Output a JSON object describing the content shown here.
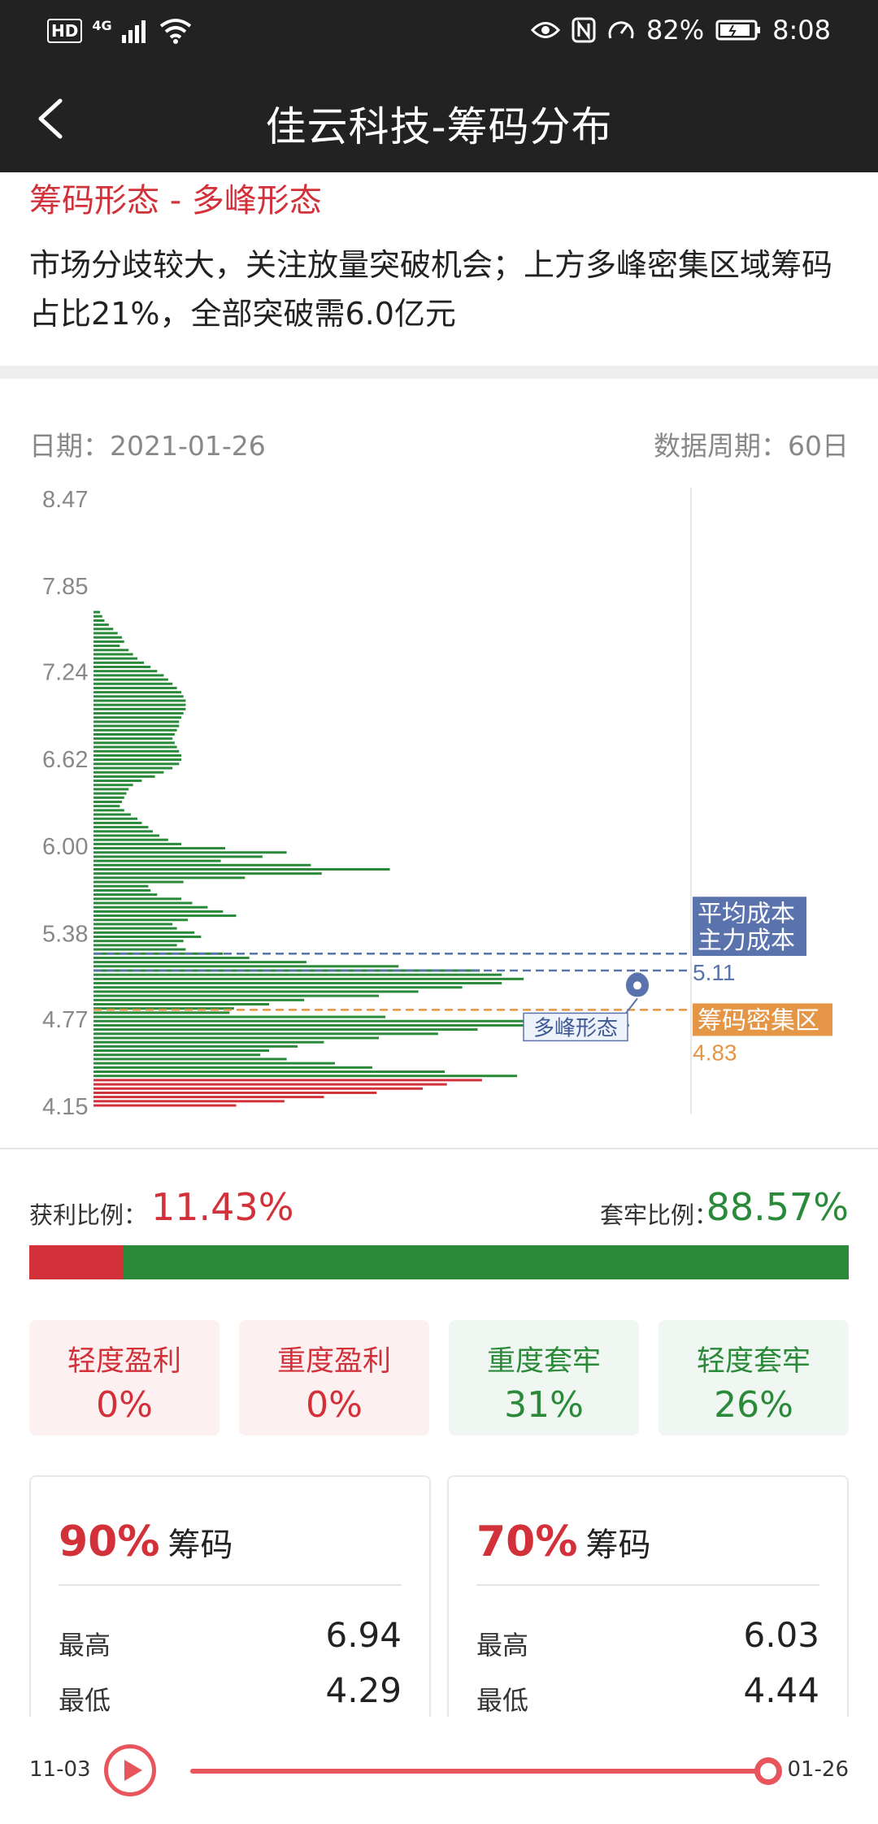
{
  "status_bar": {
    "hd": "HD",
    "network": "4G",
    "battery_pct": "82%",
    "time": "8:08"
  },
  "header": {
    "title": "佳云科技-筹码分布"
  },
  "pattern": {
    "title": "筹码形态 - 多峰形态",
    "description": "市场分歧较大，关注放量突破机会；上方多峰密集区域筹码占比21%，全部突破需6.0亿元"
  },
  "info": {
    "date": "日期：2021-01-26",
    "period": "数据周期：60日"
  },
  "chart_data": {
    "type": "bar",
    "orientation": "horizontal",
    "y_ticks": [
      "8.47",
      "7.85",
      "7.24",
      "6.62",
      "6.00",
      "5.38",
      "4.77",
      "4.15"
    ],
    "ylim": [
      4.15,
      8.47
    ],
    "price_step": 0.0311,
    "green_bars": [
      [
        7.66,
        3
      ],
      [
        7.63,
        4
      ],
      [
        7.6,
        5
      ],
      [
        7.57,
        7
      ],
      [
        7.54,
        9
      ],
      [
        7.51,
        11
      ],
      [
        7.48,
        13
      ],
      [
        7.45,
        14
      ],
      [
        7.42,
        12
      ],
      [
        7.39,
        16
      ],
      [
        7.36,
        18
      ],
      [
        7.33,
        20
      ],
      [
        7.3,
        23
      ],
      [
        7.27,
        26
      ],
      [
        7.24,
        29
      ],
      [
        7.21,
        32
      ],
      [
        7.18,
        34
      ],
      [
        7.15,
        36
      ],
      [
        7.12,
        38
      ],
      [
        7.09,
        40
      ],
      [
        7.06,
        41
      ],
      [
        7.03,
        42
      ],
      [
        7.0,
        42
      ],
      [
        6.97,
        42
      ],
      [
        6.94,
        41
      ],
      [
        6.91,
        40
      ],
      [
        6.88,
        39
      ],
      [
        6.85,
        39
      ],
      [
        6.82,
        38
      ],
      [
        6.79,
        37
      ],
      [
        6.76,
        36
      ],
      [
        6.73,
        37
      ],
      [
        6.7,
        38
      ],
      [
        6.67,
        39
      ],
      [
        6.64,
        40
      ],
      [
        6.61,
        40
      ],
      [
        6.58,
        39
      ],
      [
        6.55,
        36
      ],
      [
        6.52,
        32
      ],
      [
        6.49,
        28
      ],
      [
        6.46,
        22
      ],
      [
        6.43,
        18
      ],
      [
        6.4,
        16
      ],
      [
        6.37,
        15
      ],
      [
        6.34,
        14
      ],
      [
        6.31,
        13
      ],
      [
        6.28,
        12
      ],
      [
        6.25,
        14
      ],
      [
        6.22,
        17
      ],
      [
        6.19,
        20
      ],
      [
        6.16,
        22
      ],
      [
        6.13,
        25
      ],
      [
        6.1,
        27
      ],
      [
        6.07,
        30
      ],
      [
        6.04,
        34
      ],
      [
        6.01,
        40
      ],
      [
        5.98,
        60
      ],
      [
        5.95,
        88
      ],
      [
        5.92,
        77
      ],
      [
        5.89,
        58
      ],
      [
        5.86,
        99
      ],
      [
        5.83,
        135
      ],
      [
        5.8,
        104
      ],
      [
        5.77,
        69
      ],
      [
        5.74,
        41
      ],
      [
        5.71,
        25
      ],
      [
        5.68,
        26
      ],
      [
        5.65,
        29
      ],
      [
        5.62,
        40
      ],
      [
        5.59,
        45
      ],
      [
        5.56,
        52
      ],
      [
        5.53,
        59
      ],
      [
        5.5,
        65
      ],
      [
        5.47,
        43
      ],
      [
        5.44,
        36
      ],
      [
        5.41,
        38
      ],
      [
        5.38,
        46
      ],
      [
        5.35,
        49
      ],
      [
        5.32,
        41
      ],
      [
        5.29,
        38
      ],
      [
        5.26,
        42
      ],
      [
        5.23,
        59
      ],
      [
        5.2,
        71
      ],
      [
        5.17,
        97
      ],
      [
        5.14,
        139
      ],
      [
        5.11,
        176
      ],
      [
        5.08,
        186
      ],
      [
        5.05,
        196
      ],
      [
        5.02,
        186
      ],
      [
        4.99,
        168
      ],
      [
        4.96,
        148
      ],
      [
        4.93,
        130
      ],
      [
        4.9,
        96
      ],
      [
        4.87,
        80
      ],
      [
        4.84,
        64
      ],
      [
        4.81,
        62
      ],
      [
        4.78,
        133
      ],
      [
        4.75,
        213
      ],
      [
        4.72,
        244
      ],
      [
        4.69,
        175
      ],
      [
        4.66,
        157
      ],
      [
        4.63,
        130
      ],
      [
        4.6,
        105
      ],
      [
        4.57,
        93
      ],
      [
        4.54,
        80
      ],
      [
        4.51,
        76
      ],
      [
        4.48,
        88
      ],
      [
        4.45,
        110
      ],
      [
        4.42,
        127
      ],
      [
        4.39,
        160
      ],
      [
        4.36,
        193
      ]
    ],
    "red_bars": [
      [
        4.33,
        177
      ],
      [
        4.3,
        161
      ],
      [
        4.27,
        150
      ],
      [
        4.24,
        129
      ],
      [
        4.21,
        105
      ],
      [
        4.18,
        87
      ],
      [
        4.15,
        65
      ]
    ],
    "annotations": [
      {
        "label": "平均成本",
        "value": "5.23",
        "price": 5.23
      },
      {
        "label": "主力成本",
        "value": "5.11",
        "price": 5.11
      },
      {
        "label": "筹码密集区",
        "value": "4.83",
        "price": 4.83
      }
    ],
    "peak_marker": {
      "label": "多峰形态",
      "price": 4.83
    }
  },
  "colors": {
    "green": "#2a8a3a",
    "red": "#d2313a",
    "annotation_blue": "#5a73ac",
    "annotation_orange": "#e49546"
  },
  "ratios": {
    "profit_label": "获利比例：",
    "profit_value": "11.43%",
    "profit_fraction": 0.1143,
    "trapped_label": "套牢比例：",
    "trapped_value": "88.57%"
  },
  "levels": [
    {
      "name": "轻度盈利",
      "value": "0%"
    },
    {
      "name": "重度盈利",
      "value": "0%"
    },
    {
      "name": "重度套牢",
      "value": "31%"
    },
    {
      "name": "轻度套牢",
      "value": "26%"
    }
  ],
  "chips": [
    {
      "pct": "90%",
      "label": "筹码",
      "high_label": "最高",
      "high": "6.94",
      "low_label": "最低",
      "low": "4.29"
    },
    {
      "pct": "70%",
      "label": "筹码",
      "high_label": "最高",
      "high": "6.03",
      "low_label": "最低",
      "low": "4.44"
    }
  ],
  "player": {
    "start": "11-03",
    "end": "01-26",
    "progress": 1.0
  }
}
